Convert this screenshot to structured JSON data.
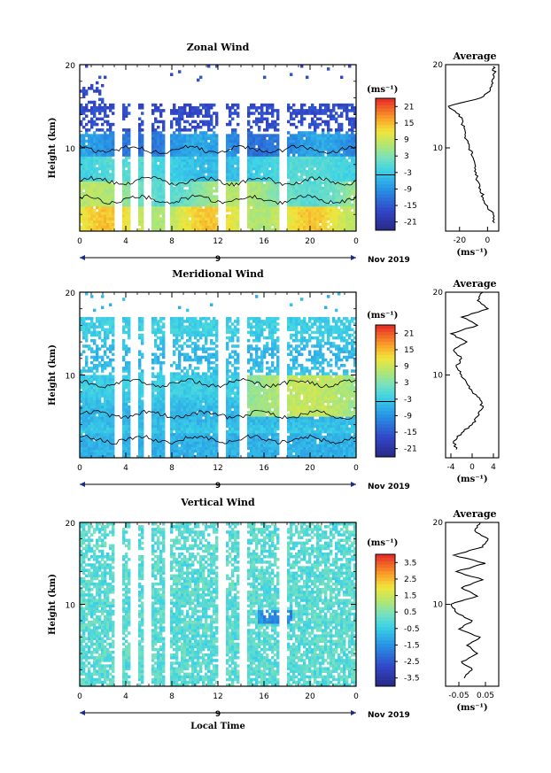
{
  "chart_data": [
    {
      "type": "heatmap",
      "id": "zonal",
      "title": "Zonal Wind",
      "ylabel": "Height (km)",
      "y_ticks": [
        "20",
        "10"
      ],
      "x_ticks": [
        "0",
        "4",
        "8",
        "12",
        "16",
        "20",
        "0"
      ],
      "date_marker": "9",
      "date_label": "Nov 2019",
      "ylim": [
        0,
        20
      ],
      "xlim": [
        0,
        24
      ],
      "colorbar_unit": "(ms⁻¹)",
      "colorbar_ticks": [
        "21",
        "15",
        "9",
        "3",
        "-3",
        "-9",
        "-15",
        "-21"
      ],
      "colorbar_range": [
        -24,
        24
      ],
      "avg_title": "Average",
      "avg_xlabel": "(ms⁻¹)",
      "avg_x_ticks": [
        "-20",
        "0"
      ],
      "avg_y_ticks": [
        "20",
        "10"
      ],
      "avg_xlim": [
        -30,
        8
      ],
      "avg_profile": [
        [
          1.0,
          5
        ],
        [
          2.0,
          4
        ],
        [
          3.0,
          0
        ],
        [
          4.0,
          -3
        ],
        [
          5.0,
          -5
        ],
        [
          6.0,
          -7
        ],
        [
          7.0,
          -8
        ],
        [
          8.0,
          -9
        ],
        [
          9.0,
          -11
        ],
        [
          10.0,
          -13
        ],
        [
          11.0,
          -15
        ],
        [
          12.0,
          -16
        ],
        [
          13.0,
          -18
        ],
        [
          14.0,
          -20
        ],
        [
          15.0,
          -28
        ],
        [
          16.0,
          -5
        ],
        [
          17.0,
          2
        ],
        [
          18.0,
          3
        ],
        [
          19.0,
          5
        ],
        [
          19.8,
          4
        ]
      ],
      "gaps": [
        3.3,
        4.7,
        5.8,
        7.6,
        12.4,
        14.2,
        17.7
      ]
    },
    {
      "type": "heatmap",
      "id": "meridional",
      "title": "Meridional Wind",
      "ylabel": "Height (km)",
      "y_ticks": [
        "20",
        "10"
      ],
      "x_ticks": [
        "0",
        "4",
        "8",
        "12",
        "16",
        "20",
        "0"
      ],
      "date_marker": "9",
      "date_label": "Nov 2019",
      "ylim": [
        0,
        20
      ],
      "xlim": [
        0,
        24
      ],
      "colorbar_unit": "(ms⁻¹)",
      "colorbar_ticks": [
        "21",
        "15",
        "9",
        "3",
        "-3",
        "-9",
        "-15",
        "-21"
      ],
      "colorbar_range": [
        -24,
        24
      ],
      "avg_title": "Average",
      "avg_xlabel": "(ms⁻¹)",
      "avg_x_ticks": [
        "-4",
        "0",
        "4"
      ],
      "avg_y_ticks": [
        "20",
        "10"
      ],
      "avg_xlim": [
        -5,
        5
      ],
      "avg_profile": [
        [
          1.0,
          -3
        ],
        [
          2.0,
          -3.5
        ],
        [
          3.0,
          -2
        ],
        [
          4.0,
          0
        ],
        [
          5.0,
          1
        ],
        [
          6.0,
          2
        ],
        [
          7.0,
          1.5
        ],
        [
          8.0,
          0
        ],
        [
          9.0,
          -1
        ],
        [
          10.0,
          -2
        ],
        [
          11.0,
          -3
        ],
        [
          12.0,
          -2
        ],
        [
          13.0,
          -3.5
        ],
        [
          14.0,
          -1
        ],
        [
          15.0,
          -4
        ],
        [
          16.0,
          1
        ],
        [
          17.0,
          -2
        ],
        [
          18.0,
          3
        ],
        [
          19.0,
          1
        ],
        [
          20.0,
          2
        ]
      ],
      "gaps": [
        3.3,
        4.7,
        5.8,
        7.6,
        12.4,
        14.2,
        17.7
      ]
    },
    {
      "type": "heatmap",
      "id": "vertical",
      "title": "Vertical Wind",
      "ylabel": "Height (km)",
      "xlabel": "Local Time",
      "y_ticks": [
        "20",
        "10"
      ],
      "x_ticks": [
        "0",
        "4",
        "8",
        "12",
        "16",
        "20",
        "0"
      ],
      "date_marker": "9",
      "date_label": "Nov 2019",
      "ylim": [
        0,
        20
      ],
      "xlim": [
        0,
        24
      ],
      "colorbar_unit": "(ms⁻¹)",
      "colorbar_ticks": [
        "3.5",
        "2.5",
        "1.5",
        "0.5",
        "-0.5",
        "-1.5",
        "-2.5",
        "-3.5"
      ],
      "colorbar_range": [
        -4,
        4
      ],
      "avg_title": "Average",
      "avg_xlabel": "(ms⁻¹)",
      "avg_x_ticks": [
        "-0.05",
        "0.05"
      ],
      "avg_y_ticks": [
        "20",
        "10"
      ],
      "avg_xlim": [
        -0.1,
        0.1
      ],
      "avg_profile": [
        [
          1.0,
          -0.03
        ],
        [
          2.0,
          0.0
        ],
        [
          3.0,
          -0.04
        ],
        [
          4.0,
          0.02
        ],
        [
          5.0,
          -0.02
        ],
        [
          6.0,
          0.03
        ],
        [
          7.0,
          -0.05
        ],
        [
          8.0,
          0.0
        ],
        [
          9.0,
          -0.06
        ],
        [
          10.0,
          -0.08
        ],
        [
          11.0,
          0.02
        ],
        [
          12.0,
          -0.04
        ],
        [
          13.0,
          0.04
        ],
        [
          14.0,
          -0.06
        ],
        [
          15.0,
          0.05
        ],
        [
          16.0,
          -0.07
        ],
        [
          17.0,
          0.04
        ],
        [
          18.0,
          0.06
        ],
        [
          19.0,
          0.01
        ],
        [
          20.0,
          0.03
        ]
      ],
      "gaps": [
        3.3,
        4.7,
        5.8,
        7.6,
        12.4,
        14.2,
        17.7
      ]
    }
  ]
}
